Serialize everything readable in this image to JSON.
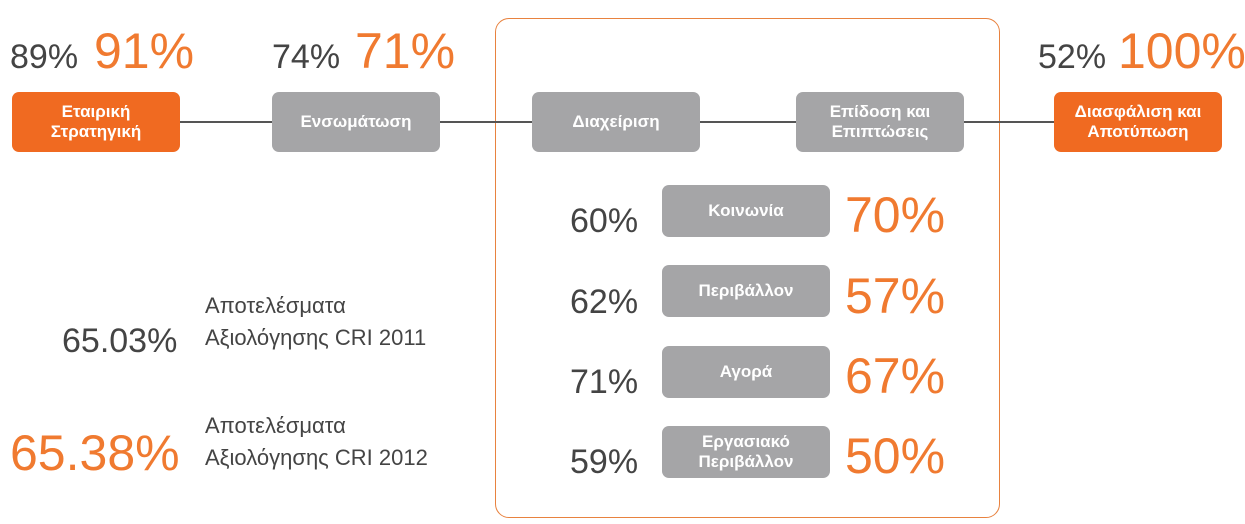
{
  "stages": [
    {
      "label": "Εταιρική\nΣτρατηγική",
      "previous": "89%",
      "current": "91%"
    },
    {
      "label": "Ενσωμάτωση",
      "previous": "74%",
      "current": "71%"
    },
    {
      "label": "Διαχείριση"
    },
    {
      "label": "Επίδοση και\nΕπιπτώσεις"
    },
    {
      "label": "Διασφάλιση και\nΑποτύπωση",
      "previous": "52%",
      "current": "100%"
    }
  ],
  "areas": [
    {
      "label": "Κοινωνία",
      "previous": "60%",
      "current": "70%"
    },
    {
      "label": "Περιβάλλον",
      "previous": "62%",
      "current": "57%"
    },
    {
      "label": "Αγορά",
      "previous": "71%",
      "current": "67%"
    },
    {
      "label": "Εργασιακό\nΠεριβάλλον",
      "previous": "59%",
      "current": "50%"
    }
  ],
  "results": [
    {
      "score": "65.03%",
      "label": "Αποτελέσματα\nΑξιολόγησης CRI 2011"
    },
    {
      "score": "65.38%",
      "label": "Αποτελέσματα\nΑξιολόγησης CRI 2012"
    }
  ]
}
